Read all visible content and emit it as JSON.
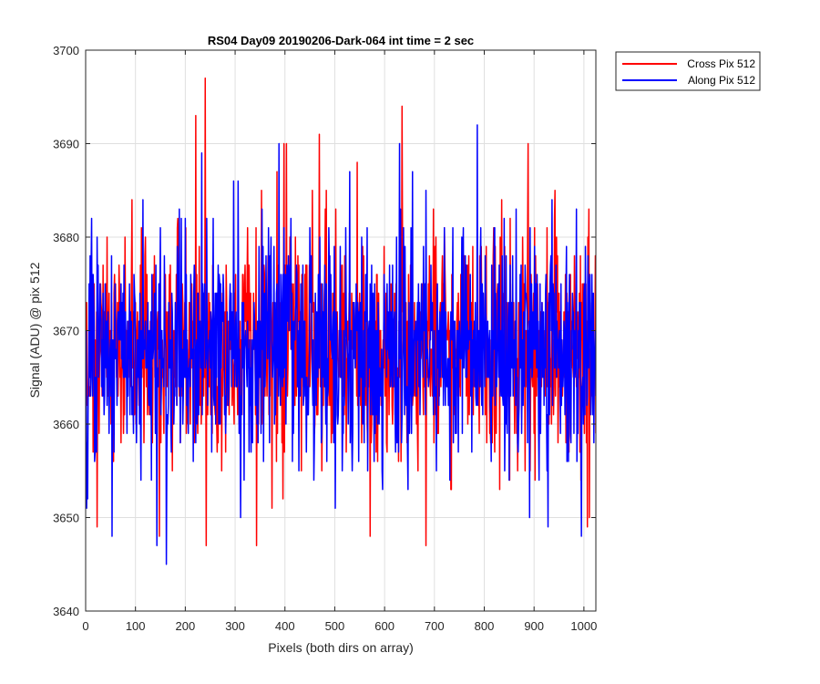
{
  "chart_data": {
    "type": "line",
    "title": "RS04 Day09 20190206-Dark-064 int time = 2 sec",
    "xlabel": "Pixels (both dirs on array)",
    "ylabel": "Signal (ADU) @ pix 512",
    "xlim": [
      0,
      1024
    ],
    "ylim": [
      3640,
      3700
    ],
    "xticks": [
      "0",
      "100",
      "200",
      "300",
      "400",
      "500",
      "600",
      "700",
      "800",
      "900",
      "1000"
    ],
    "yticks": [
      "3640",
      "3650",
      "3660",
      "3670",
      "3680",
      "3690",
      "3700"
    ],
    "grid": true,
    "legend_position": "outside top-right",
    "series": [
      {
        "name": "Cross Pix 512",
        "color": "#ff0000",
        "x_range": [
          1,
          1024
        ],
        "mean": 3668,
        "range_observed": [
          3647,
          3697
        ],
        "peaks": [
          {
            "x": 240,
            "y": 3697
          },
          {
            "x": 635,
            "y": 3694
          },
          {
            "x": 398,
            "y": 3690
          },
          {
            "x": 403,
            "y": 3690
          },
          {
            "x": 888,
            "y": 3690
          },
          {
            "x": 242,
            "y": 3647
          },
          {
            "x": 343,
            "y": 3647
          },
          {
            "x": 683,
            "y": 3647
          },
          {
            "x": 148,
            "y": 3648
          },
          {
            "x": 571,
            "y": 3648
          },
          {
            "x": 1007,
            "y": 3649
          },
          {
            "x": 23,
            "y": 3649
          }
        ]
      },
      {
        "name": "Along Pix 512",
        "color": "#0000ff",
        "x_range": [
          1,
          1024
        ],
        "mean": 3668,
        "range_observed": [
          3645,
          3692
        ],
        "peaks": [
          {
            "x": 786,
            "y": 3692
          },
          {
            "x": 388,
            "y": 3690
          },
          {
            "x": 630,
            "y": 3690
          },
          {
            "x": 233,
            "y": 3689
          },
          {
            "x": 162,
            "y": 3645
          },
          {
            "x": 143,
            "y": 3647
          },
          {
            "x": 53,
            "y": 3648
          },
          {
            "x": 928,
            "y": 3649
          },
          {
            "x": 2,
            "y": 3651
          }
        ]
      }
    ]
  }
}
